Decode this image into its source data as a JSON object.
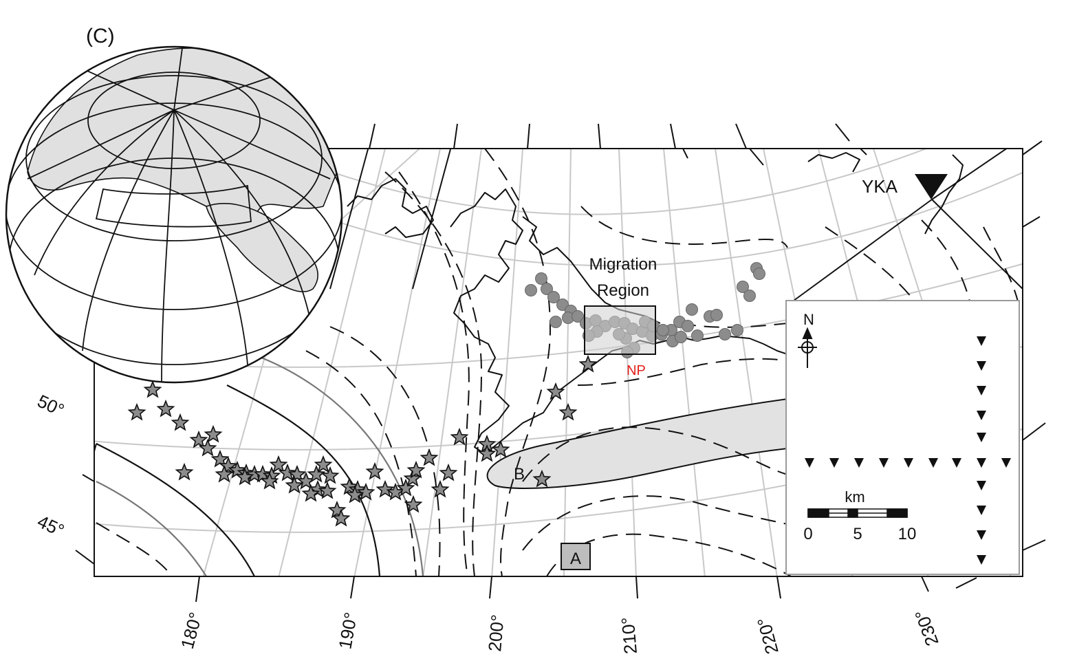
{
  "panel_label": "(C)",
  "station": {
    "name": "YKA"
  },
  "labels": {
    "migration_region_line1": "Migration",
    "migration_region_line2": "Region",
    "np": "NP",
    "region_a": "A",
    "region_b": "B"
  },
  "lat_labels": [
    "50°",
    "45°"
  ],
  "lon_labels": [
    "180°",
    "190°",
    "200°",
    "210°",
    "220°",
    "230°"
  ],
  "inset": {
    "north": "N",
    "scale_unit": "km",
    "scale_ticks": [
      "0",
      "5",
      "10"
    ]
  },
  "colors": {
    "np_text": "#e0201a",
    "event_fill": "#8c8c8c",
    "shade": "#e2e2e2",
    "grid": "#c8c8c8"
  },
  "markers": {
    "events": "gray-circle",
    "earthquakes": "gray-star",
    "station": "black-inverted-triangle",
    "array_element": "black-inverted-triangle"
  }
}
